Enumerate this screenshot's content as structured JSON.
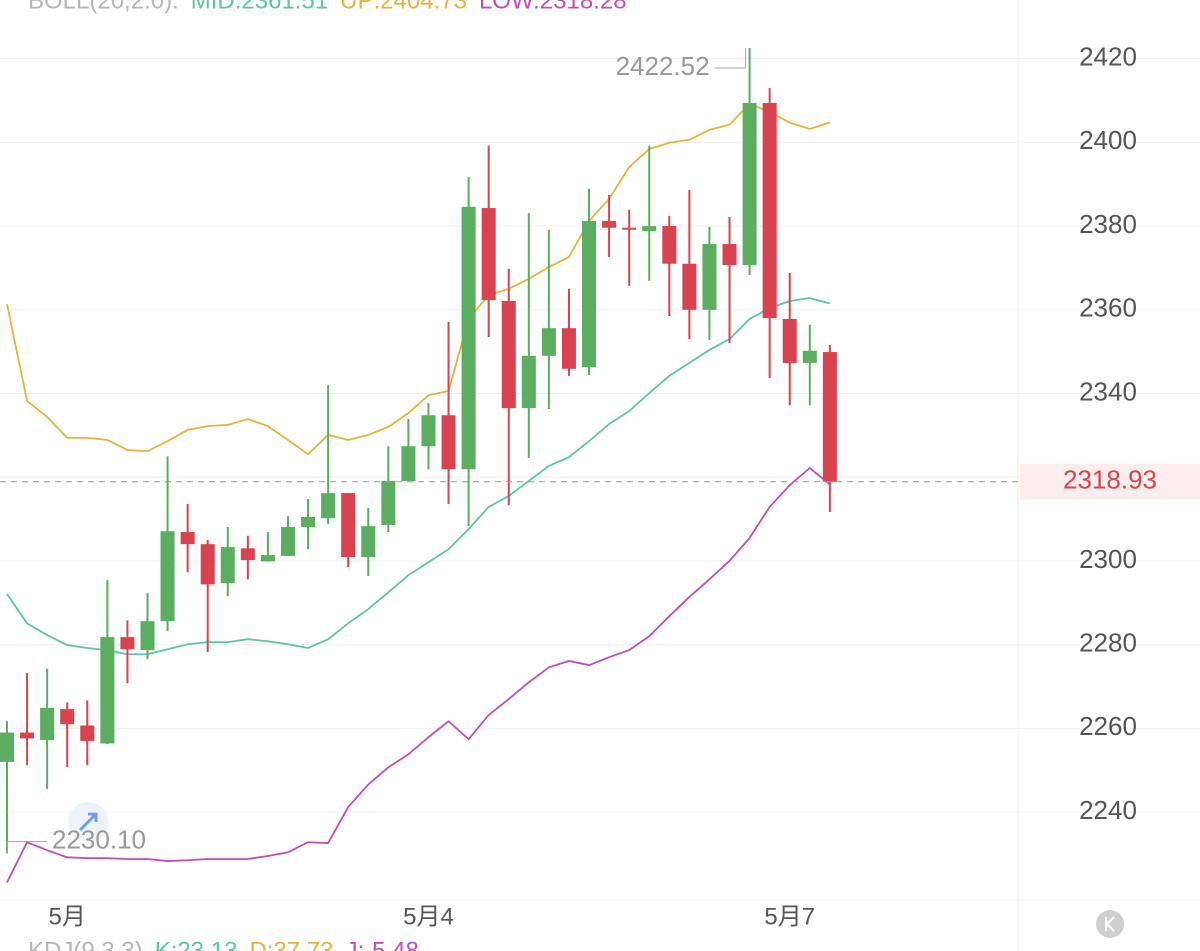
{
  "chart_data": {
    "type": "candlestick",
    "header": {
      "indicator": "BOLL(20,2.0):",
      "color": "#b5b5b5"
    },
    "footer": [
      "KDJ(9,3,3)",
      "K:23.13",
      "D:37.73",
      "J:-5.48"
    ],
    "categories": [
      null,
      null,
      null,
      "5月",
      null,
      null,
      null,
      null,
      null,
      null,
      null,
      null,
      null,
      null,
      null,
      null,
      null,
      null,
      null,
      null,
      null,
      "5月4",
      null,
      null,
      null,
      null,
      null,
      null,
      null,
      null,
      null,
      null,
      null,
      null,
      null,
      null,
      null,
      null,
      null,
      "5月7",
      null,
      null
    ],
    "open": [
      2252,
      2259,
      2257.2,
      2264.6,
      2260.7,
      2256.4,
      2281.8,
      2278.7,
      2285.6,
      2306.9,
      2304,
      2294.7,
      2303,
      2299.9,
      2301.2,
      2308.1,
      2310.2,
      2316.2,
      2300.9,
      2308.6,
      2319.1,
      2327.4,
      2334.8,
      2321.9,
      2384.3,
      2362.1,
      2336.5,
      2349,
      2355.6,
      2346.3,
      2381.2,
      2379.6,
      2378.8,
      2380,
      2371,
      2360,
      2375.7,
      2370.7,
      2409.4,
      2357.8,
      2347.3,
      2349.9
    ],
    "high": [
      2261.7,
      2273.2,
      2274.2,
      2266.2,
      2266.7,
      2295.4,
      2285.8,
      2292.3,
      2325,
      2313.6,
      2305,
      2308.1,
      2306,
      2306.9,
      2310.7,
      2314.8,
      2342,
      2316.2,
      2312.6,
      2327.4,
      2333.9,
      2337.7,
      2357.1,
      2391.7,
      2399.2,
      2369.8,
      2383.1,
      2379.1,
      2365,
      2388.9,
      2387.4,
      2383.9,
      2399.2,
      2382.4,
      2388.6,
      2379.8,
      2382.2,
      2422.52,
      2413,
      2368.8,
      2356.4,
      2351.6
    ],
    "low": [
      2230.1,
      2251.2,
      2245.5,
      2250.7,
      2251.2,
      2256.2,
      2270.8,
      2276.5,
      2283.2,
      2297.3,
      2278.2,
      2291.6,
      2295.6,
      2299.9,
      2301.2,
      2302.8,
      2308.8,
      2298.5,
      2296.4,
      2306.9,
      2319.1,
      2321.9,
      2313.6,
      2308.3,
      2353.5,
      2313.3,
      2324.6,
      2336.3,
      2344.2,
      2344.4,
      2372.6,
      2365.7,
      2366.9,
      2358.5,
      2353,
      2352.8,
      2352.1,
      2368.3,
      2343.7,
      2337.2,
      2337.2,
      2311.7
    ],
    "close": [
      2259,
      2257.6,
      2264.9,
      2261,
      2257,
      2281.8,
      2278.9,
      2285.6,
      2307.1,
      2304,
      2294.4,
      2303.3,
      2300.2,
      2301.4,
      2308.1,
      2310.5,
      2316.2,
      2300.9,
      2308.3,
      2319.1,
      2327.4,
      2334.8,
      2321.9,
      2384.6,
      2362.3,
      2336.5,
      2349,
      2355.6,
      2345.9,
      2381.2,
      2379.6,
      2379.3,
      2380,
      2371,
      2360,
      2375.7,
      2370.7,
      2409.4,
      2358,
      2347.3,
      2350.2,
      2318.93
    ],
    "up_color": "#5bae60",
    "down_color": "#d8434f",
    "series": [
      {
        "label": "MID:2361.51",
        "color": "#5cc6a6",
        "values": [
          2292.1,
          2285.1,
          2282.3,
          2279.9,
          2279.2,
          2278.7,
          2277.7,
          2277.7,
          2278.9,
          2280.1,
          2280.6,
          2280.6,
          2281.3,
          2280.8,
          2280.1,
          2279.2,
          2281.3,
          2285.1,
          2288.5,
          2292.5,
          2296.6,
          2299.7,
          2302.8,
          2307.6,
          2312.9,
          2315.5,
          2319.1,
          2322.7,
          2324.8,
          2328.6,
          2332.7,
          2335.8,
          2340.1,
          2344.2,
          2347.3,
          2350.4,
          2353,
          2357.8,
          2360.4,
          2362.1,
          2362.8,
          2361.51
        ]
      },
      {
        "label": "UP:2404.73",
        "color": "#e6b43a",
        "values": [
          2361.4,
          2338.2,
          2334.4,
          2329.4,
          2329.4,
          2328.9,
          2326.5,
          2326.2,
          2328.6,
          2331.3,
          2332.2,
          2332.5,
          2333.9,
          2332.2,
          2328.9,
          2325.5,
          2330.1,
          2328.9,
          2330.1,
          2332,
          2335.3,
          2339.6,
          2340.6,
          2357.8,
          2363.5,
          2365,
          2367.4,
          2370.2,
          2372.6,
          2381.2,
          2386.5,
          2394.1,
          2398.4,
          2399.9,
          2400.6,
          2403,
          2404.2,
          2409.2,
          2407.3,
          2404.7,
          2403.2,
          2404.73
        ]
      },
      {
        "label": "LOW:2318.28",
        "color": "#c44cb6",
        "values": [
          2223.2,
          2232.8,
          2230.9,
          2229.2,
          2229,
          2229,
          2228.8,
          2228.8,
          2228.3,
          2228.5,
          2228.8,
          2228.8,
          2228.8,
          2229.5,
          2230.4,
          2232.8,
          2232.6,
          2241.2,
          2246.6,
          2250.7,
          2253.8,
          2257.9,
          2261.7,
          2257.4,
          2263.2,
          2267,
          2271,
          2274.6,
          2276.1,
          2275.1,
          2277,
          2278.7,
          2282,
          2286.8,
          2291.4,
          2295.6,
          2300,
          2305.5,
          2312.9,
          2318.1,
          2322.2,
          2318.28
        ]
      }
    ],
    "annotations": [
      {
        "value": 2422.52,
        "label": "2422.52"
      },
      {
        "value": 2230.1,
        "label": "2230.10"
      }
    ],
    "current_price": 2318.93,
    "ylim": [
      2219,
      2434
    ],
    "yticks": [
      2240,
      2260,
      2280,
      2300,
      2320,
      2340,
      2360,
      2380,
      2400,
      2420
    ],
    "grid": true
  }
}
